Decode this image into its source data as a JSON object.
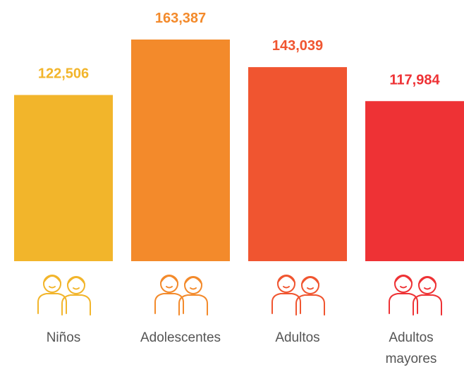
{
  "chart_data": {
    "type": "bar",
    "categories": [
      "Niños",
      "Adolescentes",
      "Adultos",
      "Adultos mayores"
    ],
    "values": [
      122506,
      163387,
      143039,
      117984
    ],
    "value_labels": [
      "122,506",
      "163,387",
      "143,039",
      "117,984"
    ],
    "colors": [
      "#f2b52b",
      "#f38a2b",
      "#f05530",
      "#ee3235"
    ]
  }
}
